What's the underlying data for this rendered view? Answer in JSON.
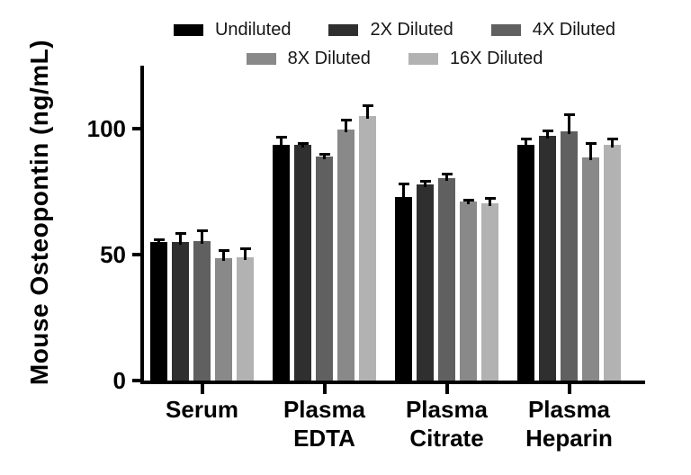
{
  "chart_data": {
    "type": "bar",
    "title": "",
    "ylabel": "Mouse Osteopontin (ng/mL)",
    "xlabel": "",
    "ylim": [
      0,
      125
    ],
    "yticks": [
      0,
      50,
      100
    ],
    "grid": false,
    "legend_position": "top",
    "error_bars": "upper whisker (SD)",
    "categories": [
      "Serum",
      "Plasma EDTA",
      "Plasma Citrate",
      "Plasma Heparin"
    ],
    "series": [
      {
        "name": "Undiluted",
        "color": "#000000",
        "values": [
          55,
          93.5,
          73,
          93.5
        ],
        "errors": [
          1.5,
          3.5,
          5.5,
          3
        ]
      },
      {
        "name": "2X Diluted",
        "color": "#2f2f2f",
        "values": [
          55,
          93.5,
          78,
          97
        ],
        "errors": [
          4,
          1,
          1.5,
          2.5
        ]
      },
      {
        "name": "4X Diluted",
        "color": "#606060",
        "values": [
          55.5,
          89,
          80.5,
          99
        ],
        "errors": [
          4.5,
          1.5,
          2,
          7
        ]
      },
      {
        "name": "8X Diluted",
        "color": "#898989",
        "values": [
          48.5,
          99.5,
          71,
          88.5
        ],
        "errors": [
          3.5,
          4.5,
          1,
          6
        ]
      },
      {
        "name": "16X Diluted",
        "color": "#b2b2b2",
        "values": [
          49,
          105,
          70.5,
          93.5
        ],
        "errors": [
          4,
          4.5,
          2.5,
          3
        ]
      }
    ],
    "legend_rows": [
      [
        0,
        1,
        2
      ],
      [
        3,
        4
      ]
    ]
  }
}
